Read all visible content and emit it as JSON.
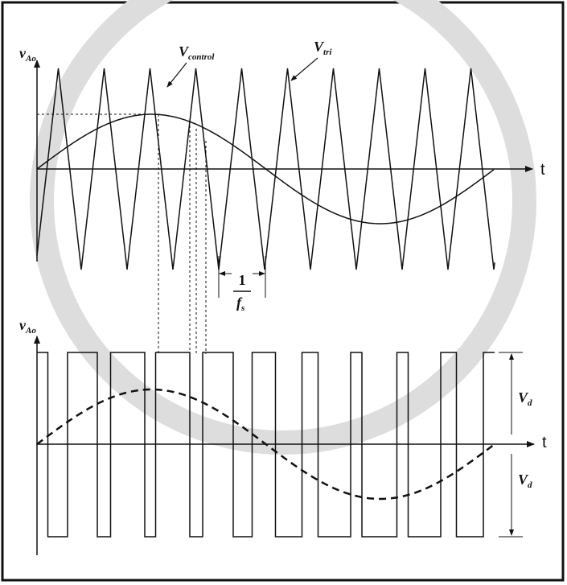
{
  "top_plot": {
    "y_label": {
      "main": "v",
      "sub": "Ao"
    },
    "x_label": "t",
    "control_label": {
      "main": "V",
      "sub": "control"
    },
    "tri_label": {
      "main": "V",
      "sub": "tri"
    },
    "period_label": {
      "numerator": "1",
      "denominator": {
        "main": "f",
        "sub": "s"
      }
    }
  },
  "bottom_plot": {
    "y_label": {
      "main": "v",
      "sub": "Ao"
    },
    "x_label": "t",
    "upper_label": {
      "main": "V",
      "sub": "d"
    },
    "lower_label": {
      "main": "V",
      "sub": "d"
    }
  }
}
